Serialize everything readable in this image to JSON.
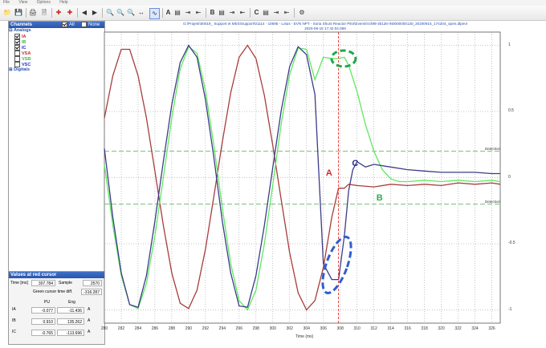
{
  "menu": [
    "File",
    "View",
    "Options",
    "Help"
  ],
  "toolbar": {
    "cursor_a": "A",
    "cursor_b": "B",
    "cursor_c": "C"
  },
  "channels_panel": {
    "title": "Channels",
    "all_label": "All",
    "none_label": "None",
    "analogs_label": "Analogs",
    "digitals_label": "Digitals",
    "analogs": [
      {
        "name": "IA",
        "checked": true,
        "color": "#cc2a2a"
      },
      {
        "name": "IB",
        "checked": true,
        "color": "#3bbf3b"
      },
      {
        "name": "IC",
        "checked": true,
        "color": "#2a2acc"
      },
      {
        "name": "VSA",
        "checked": false,
        "color": "#cc2a2a"
      },
      {
        "name": "VSB",
        "checked": false,
        "color": "#3bbf3b"
      },
      {
        "name": "VSC",
        "checked": false,
        "color": "#2a2acc"
      }
    ]
  },
  "cursor_panel": {
    "title": "Values at red cursor",
    "time_label": "Time [ms]",
    "time_value": "307.784",
    "sample_label": "Sample",
    "sample_value": "2570",
    "green_diff_label": "Green cursor time diff.",
    "green_diff_value": "-316.287",
    "col_pu": "PU",
    "col_eng": "Eng",
    "rows": [
      {
        "name": "IA",
        "pu": "-0.077",
        "eng": "-11.436",
        "unit": "A"
      },
      {
        "name": "IB",
        "pu": "0.910",
        "eng": "135.262",
        "unit": "A"
      },
      {
        "name": "IC",
        "pu": "-0.765",
        "eng": "-113.696",
        "unit": "A"
      }
    ]
  },
  "plot": {
    "title_line1": "G:\\Projets\\00019_ Support et MES\\Support\\01114 - 10695 - Lotus - EVN NPT - Soria Shunt Reactor Pilot\\Events\\V399-35126-IN0000000130_20200915_174204_open.dtpevt",
    "title_line2": "2020-09-15 17:42:04.089",
    "detection_label": "Detection",
    "xlabel": "Time (ms)",
    "labels": {
      "a": "A",
      "b": "B",
      "c": "C"
    }
  },
  "chart_data": {
    "type": "line",
    "xlabel": "Time (ms)",
    "ylabel": "",
    "xlim": [
      280,
      327
    ],
    "ylim": [
      -1.1,
      1.1
    ],
    "x_ticks": [
      280,
      282,
      284,
      286,
      288,
      290,
      292,
      294,
      296,
      298,
      300,
      302,
      304,
      306,
      308,
      310,
      312,
      314,
      316,
      318,
      320,
      322,
      324,
      326
    ],
    "y_ticks": [
      1,
      0.5,
      0,
      -0.5,
      -1
    ],
    "detection_levels": [
      0.2,
      -0.2
    ],
    "red_cursor_x": 307.784,
    "series": [
      {
        "name": "IA",
        "color": "#a83c3c",
        "x": [
          280,
          281,
          282,
          283,
          284,
          285,
          286,
          287,
          288,
          289,
          290,
          291,
          292,
          293,
          294,
          295,
          296,
          297,
          298,
          299,
          300,
          301,
          302,
          303,
          304,
          305,
          306,
          307,
          307.8,
          308.5,
          309,
          310,
          312,
          314,
          316,
          318,
          320,
          322,
          324,
          326,
          327
        ],
        "y": [
          0.45,
          0.77,
          0.97,
          0.97,
          0.77,
          0.45,
          0.05,
          -0.36,
          -0.72,
          -0.95,
          -0.99,
          -0.85,
          -0.54,
          -0.14,
          0.27,
          0.64,
          0.91,
          1.0,
          0.9,
          0.62,
          0.24,
          -0.17,
          -0.57,
          -0.87,
          -1.0,
          -0.93,
          -0.68,
          -0.3,
          -0.08,
          -0.08,
          -0.05,
          -0.06,
          -0.07,
          -0.05,
          -0.06,
          -0.05,
          -0.06,
          -0.04,
          -0.05,
          -0.04,
          -0.05
        ]
      },
      {
        "name": "IB",
        "color": "#5fe85f",
        "x": [
          280,
          281,
          282,
          283,
          284,
          285,
          286,
          287,
          288,
          289,
          290,
          291,
          292,
          293,
          294,
          295,
          296,
          297,
          298,
          299,
          300,
          301,
          302,
          303,
          304,
          305,
          306,
          307,
          307.8,
          308.5,
          309,
          310,
          311,
          312,
          313,
          314,
          315,
          316,
          318,
          320,
          322,
          324,
          326,
          327
        ],
        "y": [
          0.1,
          -0.36,
          -0.74,
          -0.96,
          -0.99,
          -0.8,
          -0.44,
          0.0,
          0.45,
          0.82,
          0.99,
          0.94,
          0.66,
          0.24,
          -0.23,
          -0.65,
          -0.93,
          -1.0,
          -0.85,
          -0.5,
          -0.05,
          0.41,
          0.78,
          0.98,
          0.97,
          0.74,
          0.91,
          0.9,
          0.9,
          0.91,
          0.85,
          0.65,
          0.4,
          0.2,
          0.06,
          -0.01,
          -0.03,
          -0.03,
          -0.02,
          -0.03,
          -0.02,
          -0.03,
          -0.02,
          -0.03
        ]
      },
      {
        "name": "IC",
        "color": "#3b3b8a",
        "x": [
          280,
          281,
          282,
          283,
          284,
          285,
          286,
          287,
          288,
          289,
          290,
          291,
          292,
          293,
          294,
          295,
          296,
          297,
          298,
          299,
          300,
          301,
          302,
          303,
          304,
          305,
          306,
          307,
          307.8,
          308.5,
          309,
          309.5,
          310,
          311,
          312,
          314,
          316,
          318,
          320,
          322,
          324,
          326,
          327
        ],
        "y": [
          0.22,
          -0.3,
          -0.72,
          -0.96,
          -0.98,
          -0.74,
          -0.33,
          0.12,
          0.55,
          0.87,
          1.0,
          0.91,
          0.59,
          0.15,
          -0.33,
          -0.72,
          -0.97,
          -0.98,
          -0.74,
          -0.36,
          0.08,
          0.51,
          0.84,
          0.99,
          0.93,
          0.63,
          -0.65,
          -0.77,
          -0.77,
          -0.44,
          -0.1,
          0.06,
          0.12,
          0.08,
          0.1,
          0.08,
          0.06,
          0.05,
          0.04,
          0.04,
          0.04,
          0.03,
          0.03
        ]
      }
    ]
  }
}
